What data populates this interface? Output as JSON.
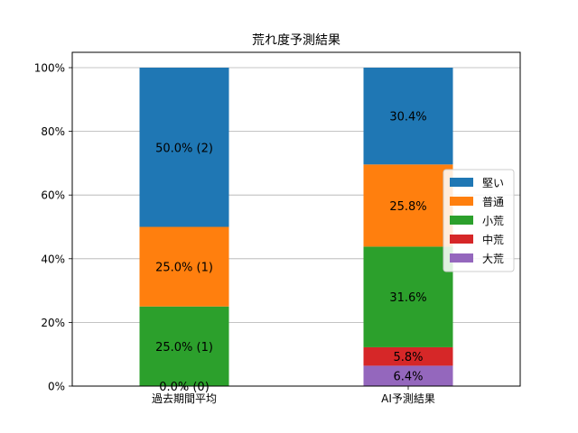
{
  "chart_data": {
    "type": "bar",
    "stacked": true,
    "title": "荒れ度予測結果",
    "xlabel": "",
    "ylabel": "",
    "categories": [
      "過去期間平均",
      "AI予測結果"
    ],
    "ylim": [
      0,
      100
    ],
    "y_ticks": [
      "0%",
      "20%",
      "40%",
      "60%",
      "80%",
      "100%"
    ],
    "grid": "y",
    "legend_position": "right",
    "series": [
      {
        "name": "大荒",
        "color": "#9467bd",
        "values": [
          0.0,
          6.4
        ],
        "labels": [
          "0.0% (0)",
          "6.4%"
        ]
      },
      {
        "name": "中荒",
        "color": "#d62728",
        "values": [
          0.0,
          5.8
        ],
        "labels": [
          "",
          "5.8%"
        ]
      },
      {
        "name": "小荒",
        "color": "#2ca02c",
        "values": [
          25.0,
          31.6
        ],
        "labels": [
          "25.0% (1)",
          "31.6%"
        ]
      },
      {
        "name": "普通",
        "color": "#ff7f0e",
        "values": [
          25.0,
          25.8
        ],
        "labels": [
          "25.0% (1)",
          "25.8%"
        ]
      },
      {
        "name": "堅い",
        "color": "#1f77b4",
        "values": [
          50.0,
          30.4
        ],
        "labels": [
          "50.0% (2)",
          "30.4%"
        ]
      }
    ],
    "legend_order": [
      "堅い",
      "普通",
      "小荒",
      "中荒",
      "大荒"
    ]
  }
}
